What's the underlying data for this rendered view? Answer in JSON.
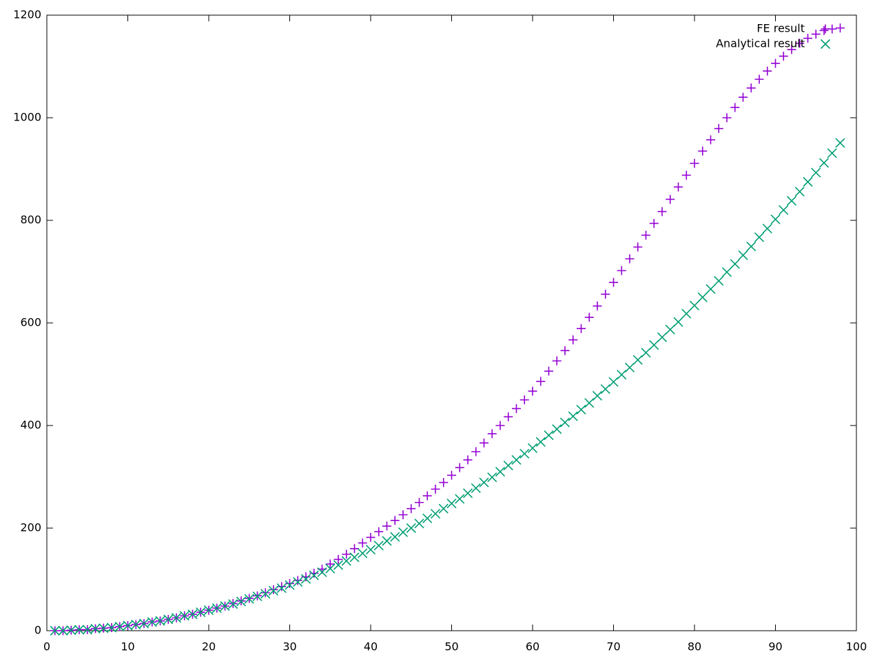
{
  "chart_data": {
    "type": "scatter",
    "x": [
      1,
      2,
      3,
      4,
      5,
      6,
      7,
      8,
      9,
      10,
      11,
      12,
      13,
      14,
      15,
      16,
      17,
      18,
      19,
      20,
      21,
      22,
      23,
      24,
      25,
      26,
      27,
      28,
      29,
      30,
      31,
      32,
      33,
      34,
      35,
      36,
      37,
      38,
      39,
      40,
      41,
      42,
      43,
      44,
      45,
      46,
      47,
      48,
      49,
      50,
      51,
      52,
      53,
      54,
      55,
      56,
      57,
      58,
      59,
      60,
      61,
      62,
      63,
      64,
      65,
      66,
      67,
      68,
      69,
      70,
      71,
      72,
      73,
      74,
      75,
      76,
      77,
      78,
      79,
      80,
      81,
      82,
      83,
      84,
      85,
      86,
      87,
      88,
      89,
      90,
      91,
      92,
      93,
      94,
      95,
      96,
      97,
      98
    ],
    "series": [
      {
        "name": "FE result",
        "color": "#9400d3",
        "marker": "plus",
        "values": [
          0,
          0,
          1,
          2,
          2,
          4,
          5,
          6,
          8,
          10,
          12,
          14,
          17,
          19,
          22,
          25,
          29,
          32,
          36,
          40,
          44,
          48,
          53,
          58,
          63,
          68,
          74,
          80,
          86,
          92,
          98,
          105,
          112,
          120,
          130,
          139,
          149,
          160,
          171,
          182,
          193,
          204,
          215,
          226,
          238,
          250,
          263,
          276,
          289,
          303,
          318,
          333,
          349,
          366,
          384,
          400,
          417,
          433,
          450,
          467,
          486,
          506,
          526,
          546,
          567,
          589,
          611,
          633,
          656,
          679,
          702,
          725,
          748,
          771,
          794,
          817,
          841,
          865,
          888,
          911,
          935,
          957,
          979,
          1000,
          1020,
          1040,
          1058,
          1075,
          1091,
          1106,
          1120,
          1133,
          1145,
          1155,
          1163,
          1170,
          1173,
          1175
        ]
      },
      {
        "name": "Analytical result",
        "color": "#009e73",
        "marker": "cross",
        "values": [
          0,
          0,
          1,
          2,
          2,
          4,
          5,
          6,
          8,
          10,
          12,
          14,
          17,
          19,
          22,
          25,
          29,
          32,
          36,
          40,
          44,
          48,
          52,
          57,
          62,
          67,
          72,
          78,
          83,
          89,
          95,
          101,
          108,
          114,
          121,
          128,
          136,
          143,
          151,
          158,
          166,
          175,
          183,
          192,
          200,
          209,
          219,
          228,
          238,
          248,
          257,
          268,
          278,
          289,
          299,
          310,
          322,
          333,
          345,
          356,
          368,
          381,
          393,
          406,
          418,
          431,
          444,
          458,
          471,
          485,
          499,
          513,
          528,
          542,
          557,
          572,
          587,
          602,
          618,
          634,
          650,
          666,
          682,
          699,
          715,
          732,
          749,
          767,
          784,
          802,
          820,
          838,
          856,
          875,
          893,
          912,
          931,
          951
        ]
      }
    ],
    "xlim": [
      0,
      100
    ],
    "xticks": [
      0,
      10,
      20,
      30,
      40,
      50,
      60,
      70,
      80,
      90,
      100
    ],
    "ylim": [
      0,
      1200
    ],
    "yticks": [
      0,
      200,
      400,
      600,
      800,
      1000,
      1200
    ],
    "grid": false,
    "legend": "top-right"
  }
}
